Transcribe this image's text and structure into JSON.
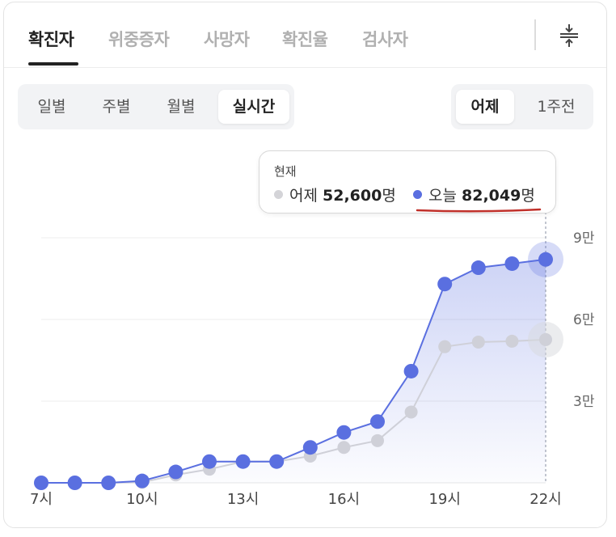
{
  "tabs": [
    {
      "label": "확진자",
      "active": true
    },
    {
      "label": "위중증자",
      "active": false
    },
    {
      "label": "사망자",
      "active": false
    },
    {
      "label": "확진율",
      "active": false
    },
    {
      "label": "검사자",
      "active": false
    }
  ],
  "period_buttons": [
    {
      "label": "일별",
      "active": false
    },
    {
      "label": "주별",
      "active": false
    },
    {
      "label": "월별",
      "active": false
    },
    {
      "label": "실시간",
      "active": true
    }
  ],
  "compare_buttons": [
    {
      "label": "어제",
      "active": true
    },
    {
      "label": "1주전",
      "active": false
    }
  ],
  "tooltip": {
    "title": "현재",
    "yesterday_label": "어제",
    "yesterday_value": "52,600",
    "today_label": "오늘",
    "today_value": "82,049",
    "unit": "명"
  },
  "chart_data": {
    "type": "line",
    "x_tick_labels": [
      "7시",
      "10시",
      "13시",
      "16시",
      "19시",
      "22시"
    ],
    "y_tick_labels": [
      "3만",
      "6만",
      "9만"
    ],
    "x": [
      7,
      8,
      9,
      10,
      11,
      12,
      13,
      14,
      15,
      16,
      17,
      18,
      19,
      20,
      21,
      22
    ],
    "ylim": [
      0,
      90000
    ],
    "grid": true,
    "series": [
      {
        "name": "어제",
        "color": "#cfd0d8",
        "values": [
          0,
          0,
          0,
          200,
          2900,
          5000,
          7800,
          7800,
          9800,
          13000,
          15500,
          26000,
          50000,
          51700,
          52000,
          52600
        ]
      },
      {
        "name": "오늘",
        "color": "#5a6fe0",
        "values": [
          0,
          0,
          0,
          700,
          4000,
          7800,
          7800,
          7800,
          13000,
          18500,
          22500,
          41000,
          73000,
          79000,
          80500,
          82049
        ]
      }
    ]
  },
  "colors": {
    "accent": "#5a6fe0",
    "yesterday": "#cfd0d8",
    "highlight_underline": "#c0302a"
  }
}
